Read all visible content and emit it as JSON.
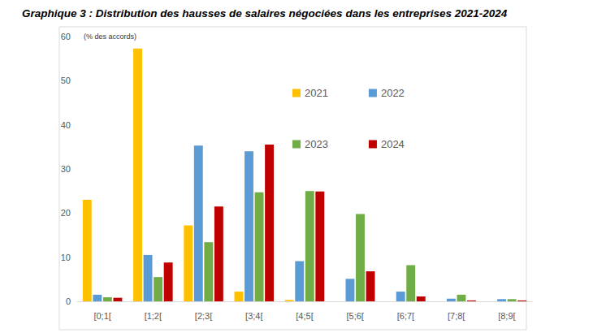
{
  "chart_data": {
    "type": "bar",
    "title": "Graphique 3 : Distribution des hausses de salaires négociées dans les entreprises 2021-2024",
    "y_label": "(% des accords)",
    "categories": [
      "[0;1[",
      "[1;2[",
      "[2;3[",
      "[3;4[",
      "[4;5[",
      "[5;6[",
      "[6;7[",
      "[7;8[",
      "[8;9["
    ],
    "series": [
      {
        "name": "2021",
        "color": "#ffc000",
        "values": [
          23,
          57.3,
          17.2,
          2.2,
          0.3,
          0,
          0,
          0,
          0
        ]
      },
      {
        "name": "2022",
        "color": "#5b9bd5",
        "values": [
          1.5,
          10.5,
          35.3,
          34,
          9.1,
          5.1,
          2.2,
          0.6,
          0.5
        ]
      },
      {
        "name": "2023",
        "color": "#70ad47",
        "values": [
          0.9,
          5.5,
          13.4,
          24.7,
          25,
          19.8,
          8.2,
          1.5,
          0.5
        ]
      },
      {
        "name": "2024",
        "color": "#c00000",
        "values": [
          0.8,
          8.8,
          21.5,
          35.5,
          24.9,
          6.8,
          1.1,
          0.2,
          0.2
        ]
      }
    ],
    "ylim": [
      0,
      60
    ],
    "yticks": [
      0,
      10,
      20,
      30,
      40,
      50,
      60
    ],
    "grid": false,
    "legend": "top"
  }
}
